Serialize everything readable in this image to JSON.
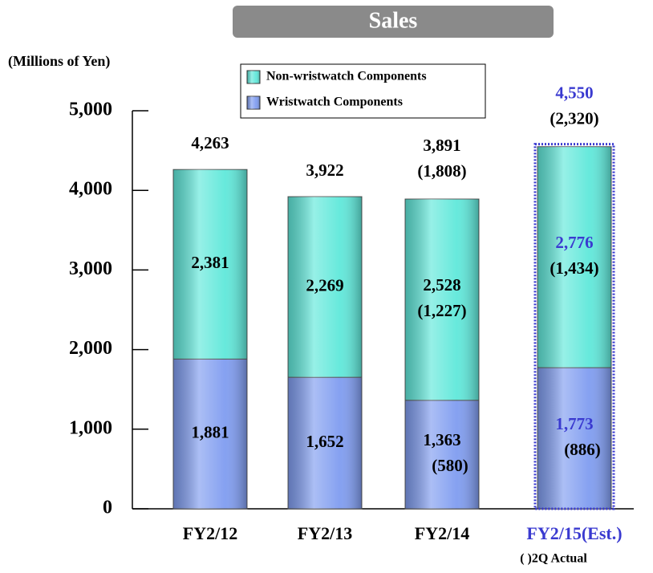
{
  "chart_data": {
    "type": "stacked_bar",
    "title": "Sales",
    "y_label": "(Millions of Yen)",
    "note": "( )2Q Actual",
    "categories": [
      "FY2/12",
      "FY2/13",
      "FY2/14",
      "FY2/15(Est.)"
    ],
    "highlight_index": 3,
    "highlight_color": "#3a3ad0",
    "ylim": [
      0,
      5000
    ],
    "yticks": [
      0,
      {
        "value": 1000,
        "label": "1,000"
      },
      {
        "value": 2000,
        "label": "2,000"
      },
      {
        "value": 3000,
        "label": "3,000"
      },
      {
        "value": 4000,
        "label": "4,000"
      },
      {
        "value": 5000,
        "label": "5,000"
      }
    ],
    "series": [
      {
        "name": "Wristwatch Components",
        "color": "#7f9cf0",
        "values": [
          1881,
          1652,
          1363,
          1773
        ],
        "value_labels": [
          "1,881",
          "1,652",
          "1,363",
          "1,773"
        ],
        "half_actual": [
          null,
          null,
          580,
          886
        ],
        "half_actual_labels": [
          null,
          null,
          "(580)",
          "(886)"
        ]
      },
      {
        "name": "Non-wristwatch Components",
        "color": "#5fe8da",
        "values": [
          2381,
          2269,
          2528,
          2776
        ],
        "value_labels": [
          "2,381",
          "2,269",
          "2,528",
          "2,776"
        ],
        "half_actual": [
          null,
          null,
          1227,
          1434
        ],
        "half_actual_labels": [
          null,
          null,
          "(1,227)",
          "(1,434)"
        ]
      }
    ],
    "totals": [
      4263,
      3922,
      3891,
      4550
    ],
    "total_labels": [
      "4,263",
      "3,922",
      "3,891",
      "4,550"
    ],
    "total_half_actual": [
      null,
      null,
      1808,
      2320
    ],
    "total_half_actual_labels": [
      null,
      null,
      "(1,808)",
      "(2,320)"
    ]
  }
}
